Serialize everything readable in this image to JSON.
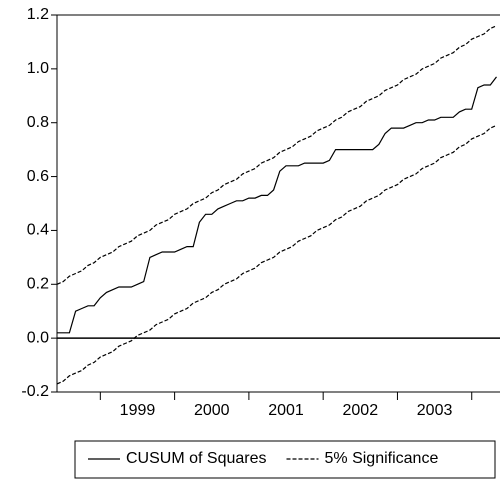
{
  "chart_data": {
    "type": "line",
    "categories": [
      null,
      null,
      null,
      null,
      null,
      null,
      null,
      null,
      null,
      null,
      null,
      null,
      null,
      "1999",
      null,
      null,
      null,
      null,
      null,
      null,
      null,
      null,
      null,
      null,
      null,
      "2000",
      null,
      null,
      null,
      null,
      null,
      null,
      null,
      null,
      null,
      null,
      null,
      "2001",
      null,
      null,
      null,
      null,
      null,
      null,
      null,
      null,
      null,
      null,
      null,
      "2002",
      null,
      null,
      null,
      null,
      null,
      null,
      null,
      null,
      null,
      null,
      null,
      "2003",
      null,
      null,
      null,
      null,
      null,
      null,
      null,
      null,
      null,
      null
    ],
    "series": [
      {
        "name": "CUSUM of Squares",
        "color": "#000000",
        "style": "solid",
        "values": [
          0.02,
          0.02,
          0.02,
          0.1,
          0.11,
          0.12,
          0.12,
          0.15,
          0.17,
          0.18,
          0.19,
          0.19,
          0.19,
          0.2,
          0.21,
          0.3,
          0.31,
          0.32,
          0.32,
          0.32,
          0.33,
          0.34,
          0.34,
          0.43,
          0.46,
          0.46,
          0.48,
          0.49,
          0.5,
          0.51,
          0.51,
          0.52,
          0.52,
          0.53,
          0.53,
          0.55,
          0.62,
          0.64,
          0.64,
          0.64,
          0.65,
          0.65,
          0.65,
          0.65,
          0.66,
          0.7,
          0.7,
          0.7,
          0.7,
          0.7,
          0.7,
          0.7,
          0.72,
          0.76,
          0.78,
          0.78,
          0.78,
          0.79,
          0.8,
          0.8,
          0.81,
          0.81,
          0.82,
          0.82,
          0.82,
          0.84,
          0.85,
          0.85,
          0.93,
          0.94,
          0.94,
          0.97
        ]
      },
      {
        "name": "5% Significance",
        "color": "#000000",
        "style": "dashed",
        "values": [
          0.2,
          0.21,
          0.23,
          0.24,
          0.25,
          0.27,
          0.28,
          0.3,
          0.31,
          0.32,
          0.34,
          0.35,
          0.36,
          0.38,
          0.39,
          0.4,
          0.42,
          0.43,
          0.44,
          0.46,
          0.47,
          0.48,
          0.5,
          0.51,
          0.52,
          0.54,
          0.55,
          0.57,
          0.58,
          0.59,
          0.61,
          0.62,
          0.63,
          0.65,
          0.66,
          0.67,
          0.69,
          0.7,
          0.71,
          0.73,
          0.74,
          0.75,
          0.77,
          0.78,
          0.79,
          0.81,
          0.82,
          0.84,
          0.85,
          0.86,
          0.88,
          0.89,
          0.9,
          0.92,
          0.93,
          0.94,
          0.96,
          0.97,
          0.98,
          1.0,
          1.01,
          1.02,
          1.04,
          1.05,
          1.06,
          1.08,
          1.09,
          1.11,
          1.12,
          1.13,
          1.15,
          1.16
        ],
        "lower_values": [
          -0.17,
          -0.16,
          -0.14,
          -0.13,
          -0.12,
          -0.1,
          -0.09,
          -0.07,
          -0.06,
          -0.05,
          -0.03,
          -0.02,
          -0.01,
          0.01,
          0.02,
          0.03,
          0.05,
          0.06,
          0.07,
          0.09,
          0.1,
          0.11,
          0.13,
          0.14,
          0.15,
          0.17,
          0.18,
          0.2,
          0.21,
          0.22,
          0.24,
          0.25,
          0.26,
          0.28,
          0.29,
          0.3,
          0.32,
          0.33,
          0.34,
          0.36,
          0.37,
          0.38,
          0.4,
          0.41,
          0.42,
          0.44,
          0.45,
          0.47,
          0.48,
          0.49,
          0.51,
          0.52,
          0.53,
          0.55,
          0.56,
          0.57,
          0.59,
          0.6,
          0.61,
          0.63,
          0.64,
          0.65,
          0.67,
          0.68,
          0.69,
          0.71,
          0.72,
          0.74,
          0.75,
          0.76,
          0.78,
          0.79
        ]
      }
    ],
    "ylim": [
      -0.2,
      1.2
    ],
    "yticks": [
      -0.2,
      {
        "value": 0.0,
        "label": "0.0"
      },
      0.2,
      0.4,
      0.6,
      0.8,
      {
        "value": 1.0,
        "label": "1.0"
      },
      1.2
    ],
    "zero_line": true,
    "grid": false,
    "legend": "bottom"
  }
}
